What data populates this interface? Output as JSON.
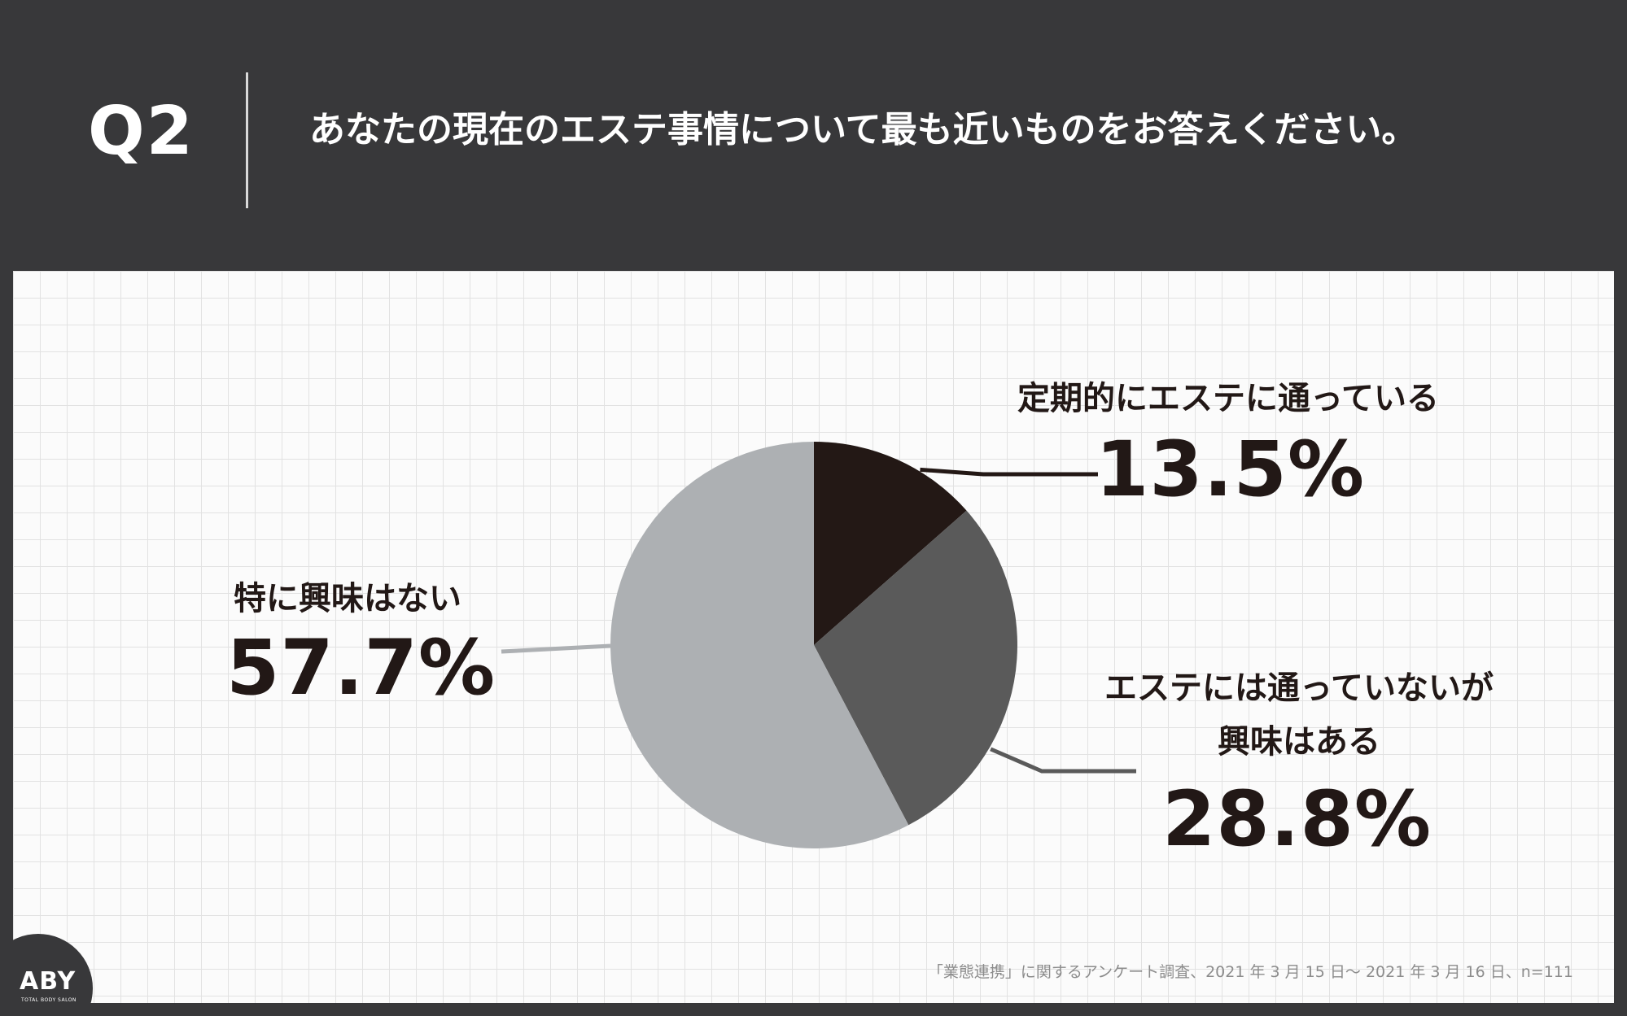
{
  "header": {
    "q_label": "Q2",
    "question": "あなたの現在のエステ事情について最も近いものをお答えください。"
  },
  "chart_data": {
    "type": "pie",
    "title": "",
    "slices": [
      {
        "label_lines": [
          "定期的にエステに通っている"
        ],
        "value": 13.5,
        "value_label": "13.5%",
        "color": "#231815"
      },
      {
        "label_lines": [
          "エステには通っていないが",
          "興味はある"
        ],
        "value": 28.8,
        "value_label": "28.8%",
        "color": "#5a5a5a"
      },
      {
        "label_lines": [
          "特に興味はない"
        ],
        "value": 57.7,
        "value_label": "57.7%",
        "color": "#adb0b3"
      }
    ],
    "start_angle": "12 o'clock",
    "direction": "clockwise",
    "legend": "none"
  },
  "footer": {
    "source": "「業態連携」に関するアンケート調査、2021 年 3 月 15 日〜 2021 年 3 月 16 日、n=111"
  },
  "logo": {
    "mark": "ABY",
    "sub": "TOTAL BODY SALON"
  },
  "colors": {
    "background": "#38383a",
    "panel": "#fbfbfb",
    "grid": "#e2e2e2",
    "text": "#221816"
  }
}
